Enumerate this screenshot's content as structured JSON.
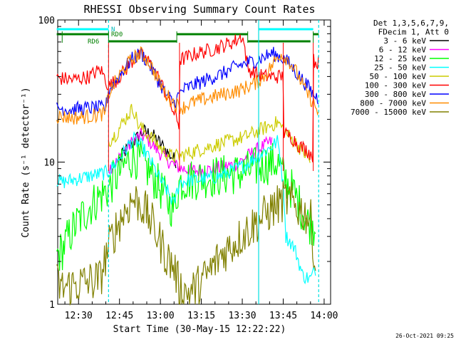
{
  "chart_data": {
    "type": "line",
    "title": "RHESSI Observing Summary Count Rates",
    "xlabel": "Start Time (30-May-15 12:22:22)",
    "ylabel": "Count Rate (s⁻¹ detector⁻¹)",
    "y_scale": "log",
    "ylim": [
      1,
      100
    ],
    "y_ticks": [
      {
        "value": 1,
        "label": "1"
      },
      {
        "value": 10,
        "label": "10"
      },
      {
        "value": 100,
        "label": "100"
      }
    ],
    "xlim": [
      "12:22:22",
      "14:02:22"
    ],
    "x_ticks": [
      {
        "t": "12:30",
        "label": "12:30"
      },
      {
        "t": "12:45",
        "label": "12:45"
      },
      {
        "t": "13:00",
        "label": "13:00"
      },
      {
        "t": "13:15",
        "label": "13:15"
      },
      {
        "t": "13:30",
        "label": "13:30"
      },
      {
        "t": "13:45",
        "label": "13:45"
      },
      {
        "t": "14:00",
        "label": "14:00"
      }
    ],
    "legend_header": [
      "Det 1,3,5,6,7,9,",
      "FDecim 1, Att 0"
    ],
    "legend_placement": "right",
    "grid": false,
    "flag_labels": {
      "n": "N",
      "rd0": "RD0",
      "rd6": "RD6"
    },
    "flags": {
      "N": [
        [
          "12:22",
          "12:41"
        ],
        [
          "13:36",
          "13:56"
        ]
      ],
      "RD0": [
        [
          "12:22",
          "12:41"
        ],
        [
          "13:06",
          "13:32"
        ],
        [
          "13:56",
          "13:58"
        ]
      ],
      "RD6": [
        [
          "12:41",
          "13:06"
        ],
        [
          "13:32",
          "13:55"
        ]
      ]
    },
    "vlines": {
      "cyan": [
        "12:41",
        "13:36",
        "13:58"
      ],
      "red": [
        "12:41",
        "13:07",
        "13:45",
        "13:56"
      ],
      "green_top": [
        "12:24",
        "12:41",
        "13:06",
        "13:32",
        "13:56"
      ]
    },
    "series": [
      {
        "name": "3 - 6 keV",
        "color": "#000000",
        "x": [
          "12:45",
          "12:48",
          "12:51",
          "12:54",
          "12:57",
          "13:00",
          "13:03",
          "13:06"
        ],
        "y": [
          10.5,
          12.5,
          14.5,
          16.5,
          15.5,
          13.5,
          11.5,
          10
        ]
      },
      {
        "name": "6 - 12 keV",
        "color": "#ff00ff",
        "x": [
          "12:41",
          "12:44",
          "12:47",
          "12:50",
          "12:53",
          "12:56",
          "12:59",
          "13:02",
          "13:05",
          "13:08",
          "13:11",
          "13:14",
          "13:17",
          "13:20",
          "13:23",
          "13:26",
          "13:29",
          "13:32",
          "13:35",
          "13:38",
          "13:41"
        ],
        "y": [
          9,
          10,
          12,
          14,
          15.5,
          14,
          12,
          10.5,
          9.5,
          9,
          8.8,
          8.7,
          8.8,
          9,
          9.2,
          9.5,
          10,
          11,
          12,
          13,
          14
        ]
      },
      {
        "name": "12 - 25 keV",
        "color": "#00ff00",
        "x": [
          "12:22",
          "12:24",
          "12:41",
          "12:44",
          "12:47",
          "12:50",
          "12:53",
          "12:56",
          "12:59",
          "13:02",
          "13:05",
          "13:07",
          "13:10",
          "13:13",
          "13:16",
          "13:19",
          "13:22",
          "13:25",
          "13:28",
          "13:31",
          "13:34",
          "13:37",
          "13:40",
          "13:43",
          "13:45",
          "13:48",
          "13:51",
          "13:54",
          "13:57"
        ],
        "y": [
          2.2,
          2.4,
          6.5,
          8,
          9.5,
          11,
          10,
          8.5,
          7,
          5.5,
          4.6,
          7.2,
          7.5,
          7.6,
          7.8,
          7.9,
          8,
          8.2,
          8.3,
          8.5,
          9,
          9.5,
          9.8,
          10,
          8,
          6.5,
          5,
          3.8,
          3.5
        ]
      },
      {
        "name": "25 - 50 keV",
        "color": "#00ffff",
        "x": [
          "12:22",
          "12:24",
          "12:41",
          "12:44",
          "12:47",
          "12:50",
          "12:53",
          "12:56",
          "12:59",
          "13:02",
          "13:05",
          "13:07",
          "13:10",
          "13:13",
          "13:16",
          "13:19",
          "13:22",
          "13:25",
          "13:28",
          "13:31",
          "13:34",
          "13:37",
          "13:40",
          "13:43",
          "13:46",
          "13:49",
          "13:52",
          "13:55",
          "13:57"
        ],
        "y": [
          7.5,
          7.2,
          8.5,
          10,
          12,
          14.5,
          13,
          10.5,
          8,
          6.5,
          5,
          7.2,
          7.4,
          7.5,
          7.6,
          7.8,
          8,
          8.5,
          9,
          9.5,
          10.5,
          11.5,
          12.5,
          14,
          3,
          2.5,
          1.6,
          1.5,
          1.8
        ]
      },
      {
        "name": "50 - 100 keV",
        "color": "#cccc00",
        "x": [
          "12:41",
          "12:44",
          "12:47",
          "12:50",
          "12:52",
          "12:55",
          "12:58",
          "13:01",
          "13:04",
          "13:07",
          "13:10",
          "13:13",
          "13:16",
          "13:19",
          "13:22",
          "13:25",
          "13:28",
          "13:31",
          "13:34",
          "13:37",
          "13:40",
          "13:43",
          "13:46",
          "13:49",
          "13:52",
          "13:55"
        ],
        "y": [
          14,
          16,
          20,
          24,
          18,
          16,
          14,
          12,
          11,
          11,
          11.5,
          12,
          12.5,
          13,
          13.5,
          14,
          14.5,
          15,
          16,
          17,
          18,
          19,
          16,
          14,
          12,
          10
        ]
      },
      {
        "name": "100 - 300 keV",
        "color": "#ff0000",
        "x": [
          "12:22",
          "12:28",
          "12:34",
          "12:38",
          "12:41",
          "12:44",
          "12:47",
          "12:50",
          "12:53",
          "12:56",
          "12:59",
          "13:02",
          "13:05",
          "13:07",
          "13:07",
          "13:10",
          "13:13",
          "13:16",
          "13:19",
          "13:22",
          "13:25",
          "13:28",
          "13:30",
          "13:32",
          "13:32",
          "13:35",
          "13:38",
          "13:41",
          "13:44",
          "13:45",
          "13:45",
          "13:48",
          "13:51",
          "13:54",
          "13:56",
          "13:56",
          "13:58"
        ],
        "y": [
          39,
          38,
          40,
          45,
          34,
          38,
          44,
          52,
          57,
          50,
          40,
          30,
          22,
          18,
          52,
          55,
          58,
          60,
          62,
          65,
          68,
          72,
          78,
          45,
          45,
          42,
          40,
          40,
          40,
          40,
          16,
          15,
          13,
          12,
          11,
          52,
          50
        ]
      },
      {
        "name": "300 - 800 keV",
        "color": "#0000ff",
        "x": [
          "12:22",
          "12:28",
          "12:34",
          "12:40",
          "12:41",
          "12:44",
          "12:47",
          "12:50",
          "12:53",
          "12:56",
          "12:59",
          "13:02",
          "13:05",
          "13:08",
          "13:11",
          "13:14",
          "13:17",
          "13:20",
          "13:23",
          "13:26",
          "13:29",
          "13:32",
          "13:35",
          "13:38",
          "13:41",
          "13:44",
          "13:47",
          "13:50",
          "13:53",
          "13:56",
          "13:58"
        ],
        "y": [
          24,
          23.5,
          24,
          24,
          32,
          38,
          46,
          54,
          58,
          48,
          38,
          30,
          26,
          32,
          34,
          36,
          38,
          40,
          42,
          45,
          48,
          50,
          52,
          55,
          58,
          55,
          50,
          42,
          36,
          30,
          28
        ]
      },
      {
        "name": "800 - 7000 keV",
        "color": "#ff8c00",
        "x": [
          "12:22",
          "12:28",
          "12:34",
          "12:40",
          "12:41",
          "12:44",
          "12:47",
          "12:50",
          "12:53",
          "12:56",
          "12:59",
          "13:02",
          "13:05",
          "13:08",
          "13:11",
          "13:14",
          "13:17",
          "13:20",
          "13:23",
          "13:26",
          "13:29",
          "13:32",
          "13:35",
          "13:38",
          "13:41",
          "13:44",
          "13:47",
          "13:50",
          "13:53",
          "13:56",
          "13:58"
        ],
        "y": [
          21,
          20.5,
          21,
          22,
          30,
          38,
          46,
          54,
          58,
          50,
          38,
          30,
          26,
          24,
          26,
          27,
          28,
          29,
          30,
          31,
          32,
          34,
          36,
          40,
          48,
          58,
          52,
          42,
          32,
          26,
          22
        ]
      },
      {
        "name": "7000 - 15000 keV",
        "color": "#808000",
        "x": [
          "12:22",
          "12:24",
          "12:38",
          "12:41",
          "12:44",
          "12:47",
          "12:50",
          "12:53",
          "12:56",
          "12:59",
          "13:02",
          "13:05",
          "13:07",
          "13:10",
          "13:13",
          "13:16",
          "13:19",
          "13:22",
          "13:25",
          "13:28",
          "13:31",
          "13:34",
          "13:37",
          "13:40",
          "13:43",
          "13:46",
          "13:49",
          "13:52",
          "13:55",
          "13:57"
        ],
        "y": [
          1.4,
          1.3,
          1.5,
          2.5,
          3.5,
          4.5,
          5.5,
          5,
          4,
          3,
          2.2,
          1.8,
          1.3,
          1.2,
          1.3,
          1.5,
          1.8,
          2.2,
          2.5,
          2.8,
          3.2,
          3.6,
          4,
          4.5,
          5,
          5.5,
          5,
          4.5,
          4,
          1.4
        ]
      }
    ],
    "footer_timestamp": "26-Oct-2021 09:25"
  }
}
